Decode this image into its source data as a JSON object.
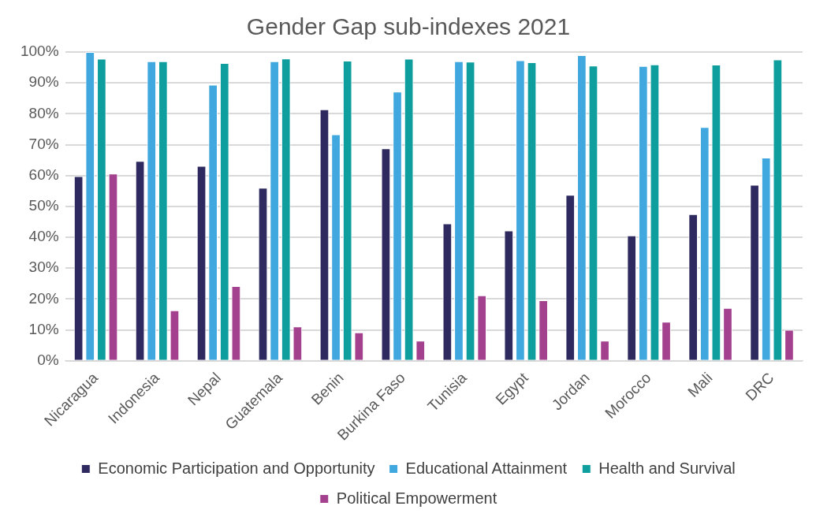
{
  "chart_data": {
    "type": "bar",
    "title": "Gender Gap sub-indexes 2021",
    "categories": [
      "Nicaragua",
      "Indonesia",
      "Nepal",
      "Guatemala",
      "Benin",
      "Burkina Faso",
      "Tunisia",
      "Egypt",
      "Jordan",
      "Morocco",
      "Mali",
      "DRC"
    ],
    "series": [
      {
        "name": "Economic Participation and Opportunity",
        "color": "#2e2a5f",
        "values": [
          59.8,
          64.7,
          63.1,
          56,
          81.4,
          68.8,
          44.5,
          42.2,
          53.7,
          40.6,
          47.5,
          57
        ]
      },
      {
        "name": "Educational Attainment",
        "color": "#40a8de",
        "values": [
          100,
          97,
          89.4,
          97,
          73.3,
          87.2,
          97,
          97.3,
          99,
          95.5,
          75.7,
          65.8
        ]
      },
      {
        "name": "Health and Survival",
        "color": "#0f9e9e",
        "values": [
          97.8,
          97,
          96.4,
          97.9,
          97.2,
          97.8,
          96.9,
          96.7,
          95.6,
          96,
          95.9,
          97.6
        ]
      },
      {
        "name": "Political Empowerment",
        "color": "#a3418f",
        "values": [
          60.6,
          16.3,
          24.2,
          11.1,
          9.2,
          6.5,
          21.2,
          19.6,
          6.5,
          12.6,
          17.1,
          10
        ]
      }
    ],
    "ylim": [
      0,
      100
    ],
    "yticks": [
      {
        "value": 0,
        "label": "0%"
      },
      {
        "value": 10,
        "label": "10%"
      },
      {
        "value": 20,
        "label": "20%"
      },
      {
        "value": 30,
        "label": "30%"
      },
      {
        "value": 40,
        "label": "40%"
      },
      {
        "value": 50,
        "label": "50%"
      },
      {
        "value": 60,
        "label": "60%"
      },
      {
        "value": 70,
        "label": "70%"
      },
      {
        "value": 80,
        "label": "80%"
      },
      {
        "value": 90,
        "label": "90%"
      },
      {
        "value": 100,
        "label": "100%"
      }
    ],
    "grid": "y",
    "legend": "bottom"
  }
}
